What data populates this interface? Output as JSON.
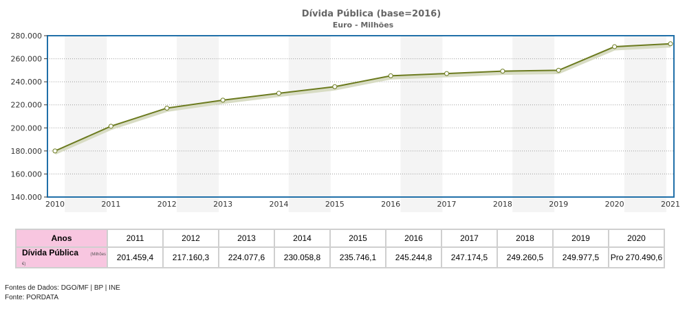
{
  "chart_data": {
    "type": "line",
    "title": "Dívida Pública (base=2016)",
    "subtitle": "Euro - Milhões",
    "x": [
      "2010",
      "2011",
      "2012",
      "2013",
      "2014",
      "2015",
      "2016",
      "2017",
      "2018",
      "2019",
      "2020",
      "2021"
    ],
    "series": [
      {
        "values": [
          180000,
          201459.4,
          217160.3,
          224077.6,
          230058.8,
          235746.1,
          245244.8,
          247174.5,
          249260.5,
          249977.5,
          270490.6,
          273000
        ]
      }
    ],
    "ylim": [
      140000,
      280000
    ],
    "yticks": [
      "140.000",
      "160.000",
      "180.000",
      "200.000",
      "220.000",
      "240.000",
      "260.000",
      "280.000"
    ],
    "ytick_values": [
      140000,
      160000,
      180000,
      200000,
      220000,
      240000,
      260000,
      280000
    ],
    "grid": true,
    "colors": {
      "line": "#6b7a1e",
      "frame": "#1f6fa8",
      "band": "#f4f4f4",
      "header_bg": "#f8c6e0"
    }
  },
  "table": {
    "header_label": "Anos",
    "row_label": "Dívida Pública",
    "unit": "(Milhões €)",
    "years": [
      "2011",
      "2012",
      "2013",
      "2014",
      "2015",
      "2016",
      "2017",
      "2018",
      "2019",
      "2020"
    ],
    "values": [
      "201.459,4",
      "217.160,3",
      "224.077,6",
      "230.058,8",
      "235.746,1",
      "245.244,8",
      "247.174,5",
      "249.260,5",
      "249.977,5",
      "Pro 270.490,6"
    ]
  },
  "sources": {
    "line1": "Fontes de Dados: DGO/MF | BP | INE",
    "line2": "Fonte: PORDATA"
  }
}
